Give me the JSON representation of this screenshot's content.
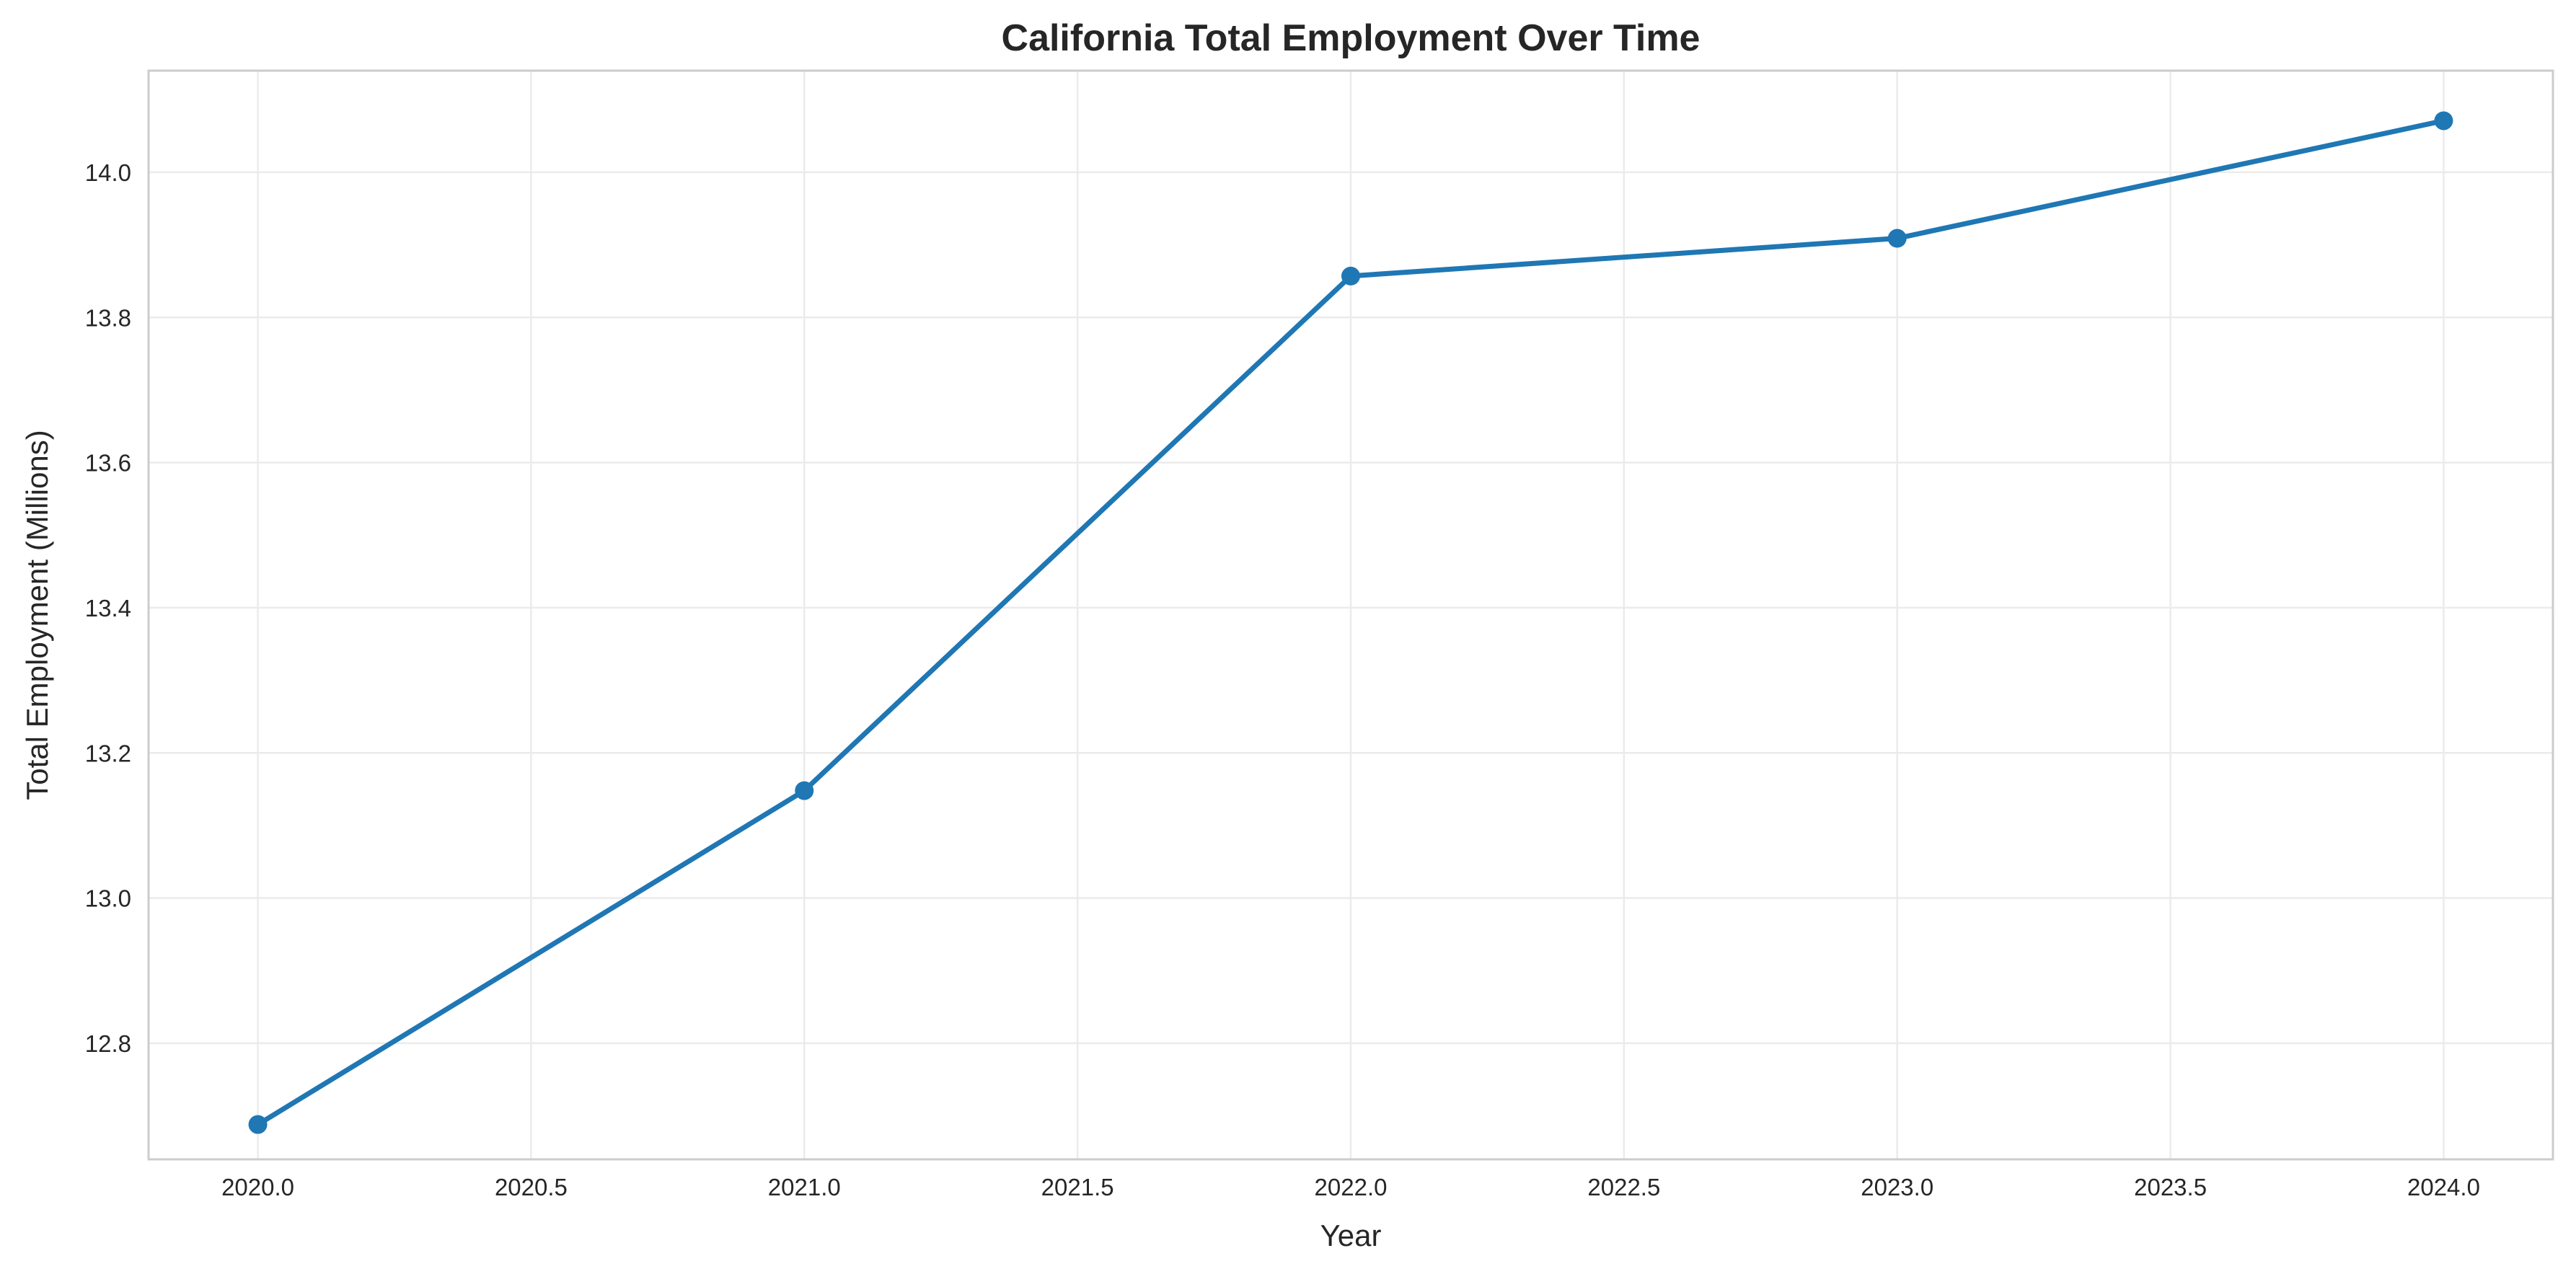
{
  "chart_data": {
    "type": "line",
    "title": "California Total Employment Over Time",
    "xlabel": "Year",
    "ylabel": "Total Employment (Millions)",
    "xlim": [
      1979.8,
      2024.2
    ],
    "ylim": [
      12.64,
      14.14
    ],
    "x_ticks": [
      2020.0,
      2020.5,
      2021.0,
      2021.5,
      2022.0,
      2022.5,
      2023.0,
      2023.5,
      2024.0
    ],
    "x_tick_labels": [
      "2020.0",
      "2020.5",
      "2021.0",
      "2021.5",
      "2022.0",
      "2022.5",
      "2023.0",
      "2023.5",
      "2024.0"
    ],
    "y_ticks": [
      12.8,
      13.0,
      13.2,
      13.4,
      13.6,
      13.8,
      14.0
    ],
    "y_tick_labels": [
      "12.8",
      "13.0",
      "13.2",
      "13.4",
      "13.6",
      "13.8",
      "14.0"
    ],
    "grid": true,
    "series": [
      {
        "x": [
          2020,
          2021,
          2022,
          2023,
          2024
        ],
        "values": [
          12.688,
          13.148,
          13.857,
          13.909,
          14.071
        ],
        "color": "#1f77b4",
        "marker": "circle"
      }
    ]
  }
}
